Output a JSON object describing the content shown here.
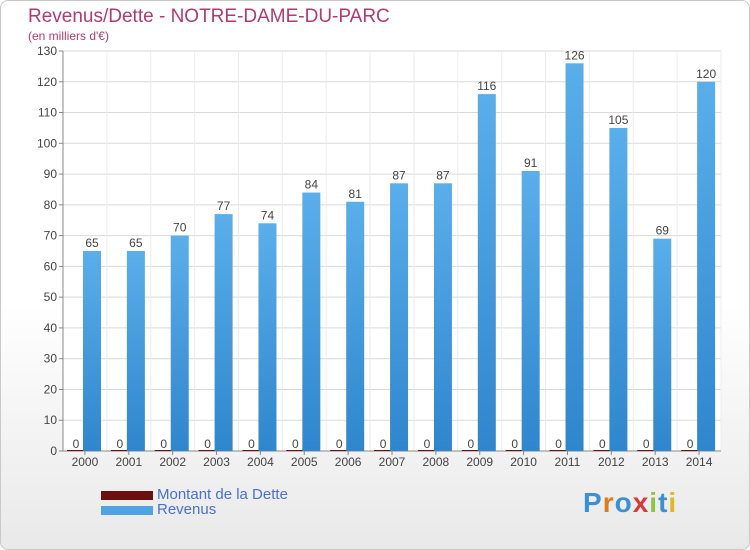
{
  "chart_data": {
    "type": "bar",
    "title": "Revenus/Dette - NOTRE-DAME-DU-PARC",
    "subtitle": "(en milliers d'€)",
    "categories": [
      "2000",
      "2001",
      "2002",
      "2003",
      "2004",
      "2005",
      "2006",
      "2007",
      "2008",
      "2009",
      "2010",
      "2011",
      "2012",
      "2013",
      "2014"
    ],
    "series": [
      {
        "name": "Montant de la Dette",
        "color": "#6b0f0f",
        "values": [
          0,
          0,
          0,
          0,
          0,
          0,
          0,
          0,
          0,
          0,
          0,
          0,
          0,
          0,
          0
        ]
      },
      {
        "name": "Revenus",
        "color": "#4fa3e3",
        "values": [
          65,
          65,
          70,
          77,
          74,
          84,
          81,
          87,
          87,
          116,
          91,
          126,
          105,
          69,
          120
        ]
      }
    ],
    "ylim": [
      0,
      130
    ],
    "yticks": [
      0,
      10,
      20,
      30,
      40,
      50,
      60,
      70,
      80,
      90,
      100,
      110,
      120,
      130
    ],
    "grid": true,
    "legend_position": "bottom-left"
  },
  "logo": {
    "letters": [
      {
        "char": "P",
        "color": "#3a8fd6"
      },
      {
        "char": "r",
        "color": "#e07a1f"
      },
      {
        "char": "o",
        "color": "#3a8fd6"
      },
      {
        "char": "x",
        "color": "#d63a3a"
      },
      {
        "char": "i",
        "color": "#8cc63f"
      },
      {
        "char": "t",
        "color": "#3a8fd6"
      },
      {
        "char": "i",
        "color": "#e0b81f"
      }
    ]
  }
}
